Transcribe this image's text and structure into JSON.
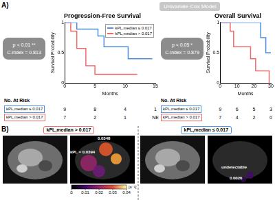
{
  "chart_data": [
    {
      "type": "line",
      "title": "Progression-Free Survival",
      "x_label": "Months",
      "y_label": "Survival Probability",
      "line_style": "steps",
      "stats": [
        "p < 0.01 **",
        "C-index = 0.813"
      ],
      "legend": "upper right",
      "grid": false,
      "xlim": [
        0,
        15
      ],
      "xticks": [
        0,
        5,
        10,
        15
      ],
      "ylim": [
        0,
        1
      ],
      "yticks": [
        0,
        0.5,
        1
      ],
      "series": [
        {
          "name": "kPL,median ≤ 0.017",
          "color": "#4a8fe0",
          "x": [
            0,
            2,
            5.5,
            6.5,
            10.5,
            14.5
          ],
          "values": [
            1,
            0.889,
            0.778,
            0.6,
            0.4,
            0.4
          ]
        },
        {
          "name": "kPL,median > 0.017",
          "color": "#f06a6a",
          "x": [
            0,
            1,
            2,
            3.5,
            5,
            12
          ],
          "values": [
            1,
            0.857,
            0.571,
            0.286,
            0.143,
            0.143
          ]
        }
      ],
      "risk_table": {
        "title": "No. At Risk",
        "rows": [
          [
            9,
            8,
            4,
            1
          ],
          [
            7,
            2,
            1,
            "NE"
          ]
        ]
      }
    },
    {
      "type": "line",
      "title": "Overall Survival",
      "x_label": "Months",
      "y_label": "Survival Probability",
      "line_style": "steps",
      "stats": [
        "p < 0.05 *",
        "C-index = 0.879"
      ],
      "grid": false,
      "xlim": [
        0,
        30
      ],
      "xticks": [
        0,
        10,
        20,
        30
      ],
      "ylim": [
        0,
        1
      ],
      "yticks": [
        0,
        0.5,
        1
      ],
      "series": [
        {
          "name": "kPL,median ≤ 0.017",
          "color": "#4a8fe0",
          "x": [
            0,
            24,
            27,
            30
          ],
          "values": [
            1,
            0.75,
            0.5,
            0.5
          ]
        },
        {
          "name": "kPL,median > 0.017",
          "color": "#f06a6a",
          "x": [
            0,
            6,
            8,
            18,
            21,
            29
          ],
          "values": [
            1,
            0.857,
            0.6,
            0.4,
            0.2,
            0
          ]
        }
      ],
      "risk_table": {
        "title": "No. At Risk",
        "rows": [
          [
            9,
            6,
            5,
            3
          ],
          [
            7,
            4,
            2,
            0
          ]
        ]
      }
    }
  ],
  "figure": {
    "panel_a_label": "A)",
    "header": "Univariate Cox Model",
    "panel_b": {
      "label": "B)",
      "groups": [
        {
          "header": "kPL,median > 0.017",
          "color": "#f06a6a",
          "annotations": [
            "0.0348",
            "kPL = 0.0394"
          ]
        },
        {
          "header": "kPL,median ≤ 0.017",
          "color": "#4a8fe0",
          "annotations": [
            "undetectable",
            "0.0026"
          ]
        }
      ],
      "colorbar": {
        "range": [
          0,
          0.04
        ],
        "ticks": [
          0,
          0.01,
          0.02,
          0.03,
          0.04
        ],
        "unit": "[s⁻¹]"
      }
    }
  }
}
